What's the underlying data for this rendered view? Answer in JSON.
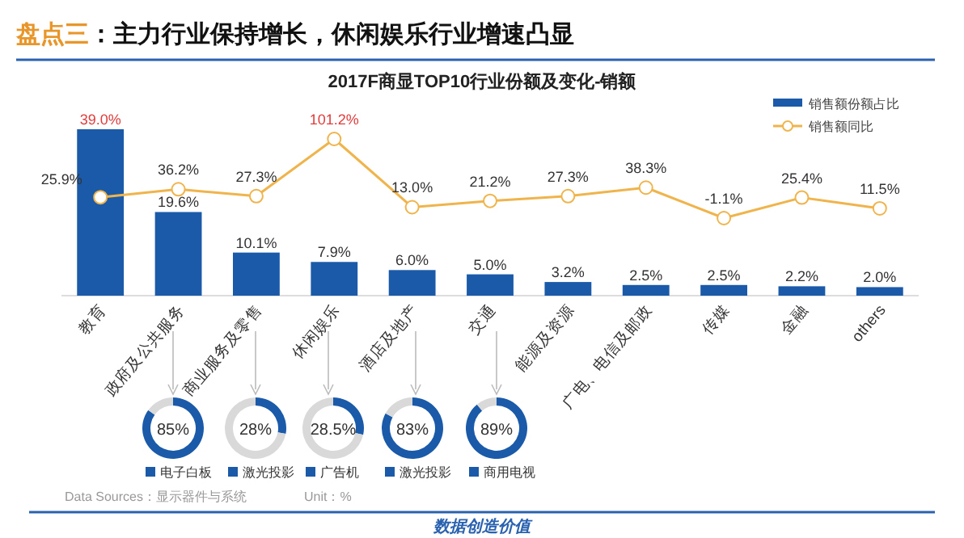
{
  "chart_data": [
    {
      "type": "bar",
      "title": "2017F商显TOP10行业份额及变化-销额",
      "categories": [
        "教育",
        "政府及公共服务",
        "商业服务及零售",
        "休闲娱乐",
        "酒店及地产",
        "交通",
        "能源及资源",
        "广电、电信及邮政",
        "传媒",
        "金融",
        "others"
      ],
      "series": [
        {
          "name": "销售额份额占比",
          "type": "bar",
          "color": "#1a5aa8",
          "values": [
            39.0,
            19.6,
            10.1,
            7.9,
            6.0,
            5.0,
            3.2,
            2.5,
            2.5,
            2.2,
            2.0
          ],
          "value_labels": [
            "39.0%",
            "19.6%",
            "10.1%",
            "7.9%",
            "6.0%",
            "5.0%",
            "3.2%",
            "2.5%",
            "2.5%",
            "2.2%",
            "2.0%"
          ]
        },
        {
          "name": "销售额同比",
          "type": "line",
          "axis": "y2",
          "color": "#f0b44c",
          "values": [
            25.9,
            36.2,
            27.3,
            101.2,
            13.0,
            21.2,
            27.3,
            38.3,
            -1.1,
            25.4,
            11.5
          ],
          "value_labels": [
            "25.9%",
            "36.2%",
            "27.3%",
            "101.2%",
            "13.0%",
            "21.2%",
            "27.3%",
            "38.3%",
            "-1.1%",
            "25.4%",
            "11.5%"
          ]
        }
      ],
      "marker": "circle",
      "legend": "top right",
      "annotations": [
        "盘点三：主力行业保持增长，休闲娱乐行业增速凸显",
        "Data Sources：显示器件与系统",
        "Unit：%",
        "数据创造价值"
      ]
    },
    {
      "type": "donut",
      "categories": [
        "电子白板",
        null
      ],
      "values": [
        85,
        15
      ],
      "colors": [
        "#1a5aa8",
        "#d9d9d9"
      ],
      "annotations": [
        "85%"
      ],
      "legend": "bottom"
    },
    {
      "type": "donut",
      "categories": [
        "激光投影",
        null
      ],
      "values": [
        28,
        72
      ],
      "colors": [
        "#1a5aa8",
        "#d9d9d9"
      ],
      "annotations": [
        "28%"
      ],
      "legend": "bottom"
    },
    {
      "type": "donut",
      "categories": [
        "广告机",
        null
      ],
      "values": [
        28.5,
        71.5
      ],
      "colors": [
        "#1a5aa8",
        "#d9d9d9"
      ],
      "annotations": [
        "28.5%"
      ],
      "legend": "bottom"
    },
    {
      "type": "donut",
      "categories": [
        "激光投影",
        null
      ],
      "values": [
        83,
        17
      ],
      "colors": [
        "#1a5aa8",
        "#d9d9d9"
      ],
      "annotations": [
        "83%"
      ],
      "legend": "bottom"
    },
    {
      "type": "donut",
      "categories": [
        "商用电视",
        null
      ],
      "values": [
        89,
        11
      ],
      "colors": [
        "#1a5aa8",
        "#d9d9d9"
      ],
      "annotations": [
        "89%"
      ],
      "legend": "bottom"
    }
  ]
}
